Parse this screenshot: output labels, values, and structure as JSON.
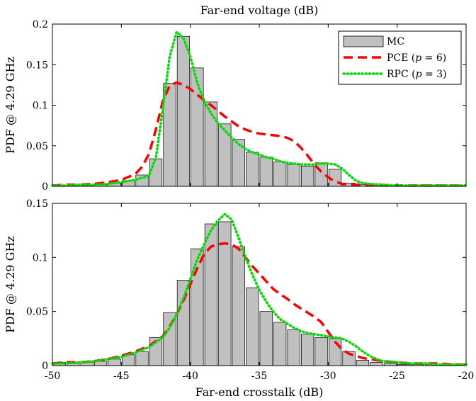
{
  "chart_data": [
    {
      "type": "bar",
      "title": "Far-end voltage (dB)",
      "xlabel": "",
      "ylabel": "PDF @ 4.29 GHz",
      "xlim": [
        -50,
        -20
      ],
      "ylim": [
        0,
        0.2
      ],
      "xticks": [
        -50,
        -45,
        -40,
        -35,
        -30,
        -25,
        -20
      ],
      "yticks": [
        0,
        0.05,
        0.1,
        0.15,
        0.2
      ],
      "ytick_labels": [
        "0",
        "0.05",
        "0.1",
        "0.15",
        "0.2"
      ],
      "show_x_tick_labels": false,
      "bar_width": 0.9,
      "bars": {
        "name": "MC",
        "x": [
          -49.5,
          -48.5,
          -47.5,
          -46.5,
          -45.5,
          -44.5,
          -43.5,
          -42.5,
          -41.5,
          -40.5,
          -39.5,
          -38.5,
          -37.5,
          -36.5,
          -35.5,
          -34.5,
          -33.5,
          -32.5,
          -31.5,
          -30.5,
          -29.5,
          -28.5,
          -27.5,
          -26.5,
          -25.5,
          -24.5,
          -23.5,
          -22.5,
          -21.5,
          -20.5
        ],
        "values": [
          0.001,
          0.001,
          0.001,
          0.002,
          0.004,
          0.007,
          0.014,
          0.034,
          0.127,
          0.185,
          0.146,
          0.104,
          0.077,
          0.058,
          0.042,
          0.036,
          0.03,
          0.027,
          0.025,
          0.029,
          0.021,
          0.004,
          0.002,
          0.001,
          0.001,
          0.001,
          0.001,
          0.001,
          0.001,
          0.001
        ]
      },
      "lines": [
        {
          "name": "PCE (p = 6)",
          "style": "dashed",
          "color": "#ff0000",
          "x": [
            -50,
            -49,
            -48,
            -47,
            -46,
            -45,
            -44,
            -43.5,
            -43,
            -42.5,
            -42,
            -41.5,
            -41,
            -40.5,
            -40,
            -39.5,
            -39,
            -38.5,
            -38,
            -37.5,
            -37,
            -36.5,
            -36,
            -35.5,
            -35,
            -34.5,
            -34,
            -33.5,
            -33,
            -32.5,
            -32,
            -31.5,
            -31,
            -30.5,
            -30,
            -29.5,
            -29,
            -28.5,
            -28,
            -27,
            -26,
            -25,
            -24,
            -23,
            -22,
            -21,
            -20
          ],
          "values": [
            0.001,
            0.002,
            0.002,
            0.003,
            0.005,
            0.008,
            0.015,
            0.024,
            0.04,
            0.07,
            0.105,
            0.124,
            0.128,
            0.125,
            0.12,
            0.113,
            0.106,
            0.1,
            0.093,
            0.086,
            0.08,
            0.074,
            0.07,
            0.067,
            0.065,
            0.064,
            0.063,
            0.062,
            0.06,
            0.056,
            0.048,
            0.038,
            0.027,
            0.018,
            0.011,
            0.006,
            0.003,
            0.002,
            0.002,
            0.002,
            0.001,
            0.001,
            0.001,
            0.001,
            0.001,
            0.001,
            0.001
          ]
        },
        {
          "name": "RPC (p = 3)",
          "style": "dotted",
          "color": "#00dd00",
          "x": [
            -50,
            -49,
            -48,
            -47,
            -46,
            -45,
            -44,
            -43,
            -42.5,
            -42,
            -41.5,
            -41,
            -40.5,
            -40,
            -39.5,
            -39,
            -38.5,
            -38,
            -37.5,
            -37,
            -36.5,
            -36,
            -35.5,
            -35,
            -34.5,
            -34,
            -33.5,
            -33,
            -32.5,
            -32,
            -31.5,
            -31,
            -30.5,
            -30,
            -29.5,
            -29,
            -28.5,
            -28,
            -27.5,
            -27,
            -26,
            -25,
            -24,
            -23,
            -22,
            -21,
            -20
          ],
          "values": [
            0.001,
            0.001,
            0.002,
            0.002,
            0.003,
            0.005,
            0.008,
            0.013,
            0.035,
            0.095,
            0.16,
            0.19,
            0.183,
            0.16,
            0.128,
            0.105,
            0.09,
            0.078,
            0.069,
            0.06,
            0.052,
            0.046,
            0.042,
            0.039,
            0.036,
            0.034,
            0.031,
            0.029,
            0.028,
            0.027,
            0.027,
            0.027,
            0.028,
            0.028,
            0.027,
            0.022,
            0.014,
            0.007,
            0.004,
            0.003,
            0.002,
            0.001,
            0.001,
            0.001,
            0.001,
            0.001,
            0.001
          ]
        }
      ],
      "legend": {
        "placement": "top-right",
        "entries": [
          {
            "symbol": "bar",
            "label": "MC"
          },
          {
            "symbol": "dashed",
            "color": "#ff0000",
            "label_prefix": "PCE (",
            "label_var": "p",
            "label_suffix": " = 6)"
          },
          {
            "symbol": "dotted",
            "color": "#00dd00",
            "label_prefix": "RPC (",
            "label_var": "p",
            "label_suffix": " = 3)"
          }
        ]
      }
    },
    {
      "type": "bar",
      "title": "",
      "xlabel": "Far-end crosstalk (dB)",
      "ylabel": "PDF @ 4.29 GHz",
      "xlim": [
        -50,
        -20
      ],
      "ylim": [
        0,
        0.15
      ],
      "xticks": [
        -50,
        -45,
        -40,
        -35,
        -30,
        -25,
        -20
      ],
      "yticks": [
        0,
        0.05,
        0.1,
        0.15
      ],
      "ytick_labels": [
        "0",
        "0.05",
        "0.1",
        "0.15"
      ],
      "show_x_tick_labels": true,
      "bar_width": 0.9,
      "bars": {
        "name": "MC",
        "x": [
          -49.5,
          -48.5,
          -47.5,
          -46.5,
          -45.5,
          -44.5,
          -43.5,
          -42.5,
          -41.5,
          -40.5,
          -39.5,
          -38.5,
          -37.5,
          -36.5,
          -35.5,
          -34.5,
          -33.5,
          -32.5,
          -31.5,
          -30.5,
          -29.5,
          -28.5,
          -27.5,
          -26.5,
          -25.5,
          -24.5,
          -23.5,
          -22.5,
          -21.5,
          -20.5
        ],
        "values": [
          0.003,
          0.002,
          0.003,
          0.004,
          0.006,
          0.01,
          0.013,
          0.026,
          0.049,
          0.079,
          0.108,
          0.131,
          0.133,
          0.11,
          0.072,
          0.05,
          0.04,
          0.033,
          0.029,
          0.026,
          0.025,
          0.013,
          0.005,
          0.003,
          0.002,
          0.001,
          0.001,
          0.001,
          0.001,
          0.001
        ]
      },
      "lines": [
        {
          "name": "PCE (p = 6)",
          "style": "dashed",
          "color": "#ff0000",
          "x": [
            -50,
            -49,
            -48,
            -47,
            -46,
            -45,
            -44,
            -43,
            -42,
            -41.5,
            -41,
            -40.5,
            -40,
            -39.5,
            -39,
            -38.5,
            -38,
            -37.5,
            -37,
            -36.5,
            -36,
            -35.5,
            -35,
            -34.5,
            -34,
            -33.5,
            -33,
            -32.5,
            -32,
            -31.5,
            -31,
            -30.5,
            -30,
            -29.5,
            -29,
            -28.5,
            -28,
            -27.5,
            -27,
            -26.5,
            -26,
            -25,
            -24,
            -23,
            -22,
            -21,
            -20
          ],
          "values": [
            0.002,
            0.003,
            0.003,
            0.004,
            0.006,
            0.009,
            0.013,
            0.018,
            0.027,
            0.036,
            0.047,
            0.06,
            0.075,
            0.09,
            0.103,
            0.11,
            0.112,
            0.113,
            0.112,
            0.108,
            0.1,
            0.092,
            0.085,
            0.078,
            0.071,
            0.066,
            0.062,
            0.057,
            0.053,
            0.049,
            0.045,
            0.04,
            0.031,
            0.022,
            0.015,
            0.011,
            0.009,
            0.007,
            0.006,
            0.005,
            0.004,
            0.003,
            0.002,
            0.002,
            0.002,
            0.001,
            0.001
          ]
        },
        {
          "name": "RPC (p = 3)",
          "style": "dotted",
          "color": "#00dd00",
          "x": [
            -50,
            -49,
            -48,
            -47,
            -46,
            -45,
            -44,
            -43,
            -42,
            -41.5,
            -41,
            -40.5,
            -40,
            -39.5,
            -39,
            -38.5,
            -38,
            -37.5,
            -37,
            -36.5,
            -36,
            -35.5,
            -35,
            -34.5,
            -34,
            -33.5,
            -33,
            -32.5,
            -32,
            -31.5,
            -31,
            -30.5,
            -30,
            -29.5,
            -29,
            -28.5,
            -28,
            -27.5,
            -27,
            -26.5,
            -26,
            -25,
            -24,
            -23,
            -22,
            -21,
            -20
          ],
          "values": [
            0.002,
            0.002,
            0.003,
            0.004,
            0.006,
            0.008,
            0.012,
            0.017,
            0.026,
            0.035,
            0.047,
            0.062,
            0.08,
            0.098,
            0.112,
            0.125,
            0.134,
            0.14,
            0.135,
            0.118,
            0.1,
            0.084,
            0.07,
            0.059,
            0.05,
            0.043,
            0.039,
            0.035,
            0.032,
            0.03,
            0.029,
            0.028,
            0.027,
            0.026,
            0.025,
            0.022,
            0.018,
            0.013,
            0.009,
            0.006,
            0.004,
            0.003,
            0.002,
            0.002,
            0.001,
            0.001,
            0.001
          ]
        }
      ]
    }
  ]
}
